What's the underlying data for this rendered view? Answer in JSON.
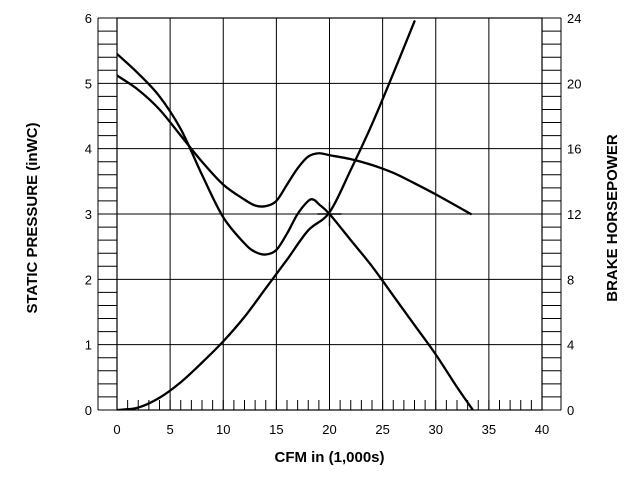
{
  "chart_data": {
    "type": "line",
    "xlabel": "CFM in (1,000s)",
    "ylabel": "STATIC PRESSURE (inWC)",
    "y2label": "BRAKE HORSEPOWER",
    "xlim": [
      0,
      40
    ],
    "ylim": [
      0,
      6
    ],
    "y2lim": [
      0,
      24
    ],
    "x_ticks": [
      0,
      5,
      10,
      15,
      20,
      25,
      30,
      35,
      40
    ],
    "y_ticks": [
      0,
      1,
      2,
      3,
      4,
      5,
      6
    ],
    "y2_ticks": [
      0,
      4,
      8,
      12,
      16,
      20,
      24
    ],
    "x_minor_step": 1,
    "y_minor_step": 0.2,
    "y2_minor_step": 0.8,
    "grid": true,
    "operating_point": {
      "x": 20,
      "y": 3
    },
    "series": [
      {
        "axis": "left",
        "x": [
          0,
          2,
          4,
          6,
          8,
          10,
          12,
          13,
          14,
          15,
          16,
          17,
          18,
          18.5,
          19,
          20,
          22,
          24,
          26,
          28,
          30,
          32,
          33.5
        ],
        "y": [
          5.45,
          5.15,
          4.8,
          4.3,
          3.6,
          2.95,
          2.55,
          2.42,
          2.38,
          2.45,
          2.7,
          3.0,
          3.2,
          3.22,
          3.15,
          3.0,
          2.6,
          2.2,
          1.75,
          1.3,
          0.85,
          0.35,
          0.0
        ]
      },
      {
        "axis": "left",
        "x": [
          0,
          2,
          4,
          6,
          8,
          10,
          12,
          13,
          14,
          15,
          16,
          17,
          18,
          19,
          20,
          22,
          24,
          26,
          28,
          30,
          33.3
        ],
        "y": [
          5.12,
          4.9,
          4.6,
          4.2,
          3.8,
          3.45,
          3.22,
          3.13,
          3.12,
          3.2,
          3.45,
          3.7,
          3.88,
          3.93,
          3.9,
          3.84,
          3.75,
          3.63,
          3.47,
          3.3,
          3.0
        ]
      },
      {
        "axis": "right",
        "x": [
          0,
          2,
          4,
          6,
          8,
          10,
          12,
          14,
          16,
          18,
          20,
          22,
          24,
          26,
          28
        ],
        "y": [
          0,
          0.15,
          0.75,
          1.7,
          2.9,
          4.2,
          5.7,
          7.45,
          9.2,
          11.0,
          12.1,
          14.7,
          17.5,
          20.6,
          23.8
        ]
      }
    ]
  }
}
